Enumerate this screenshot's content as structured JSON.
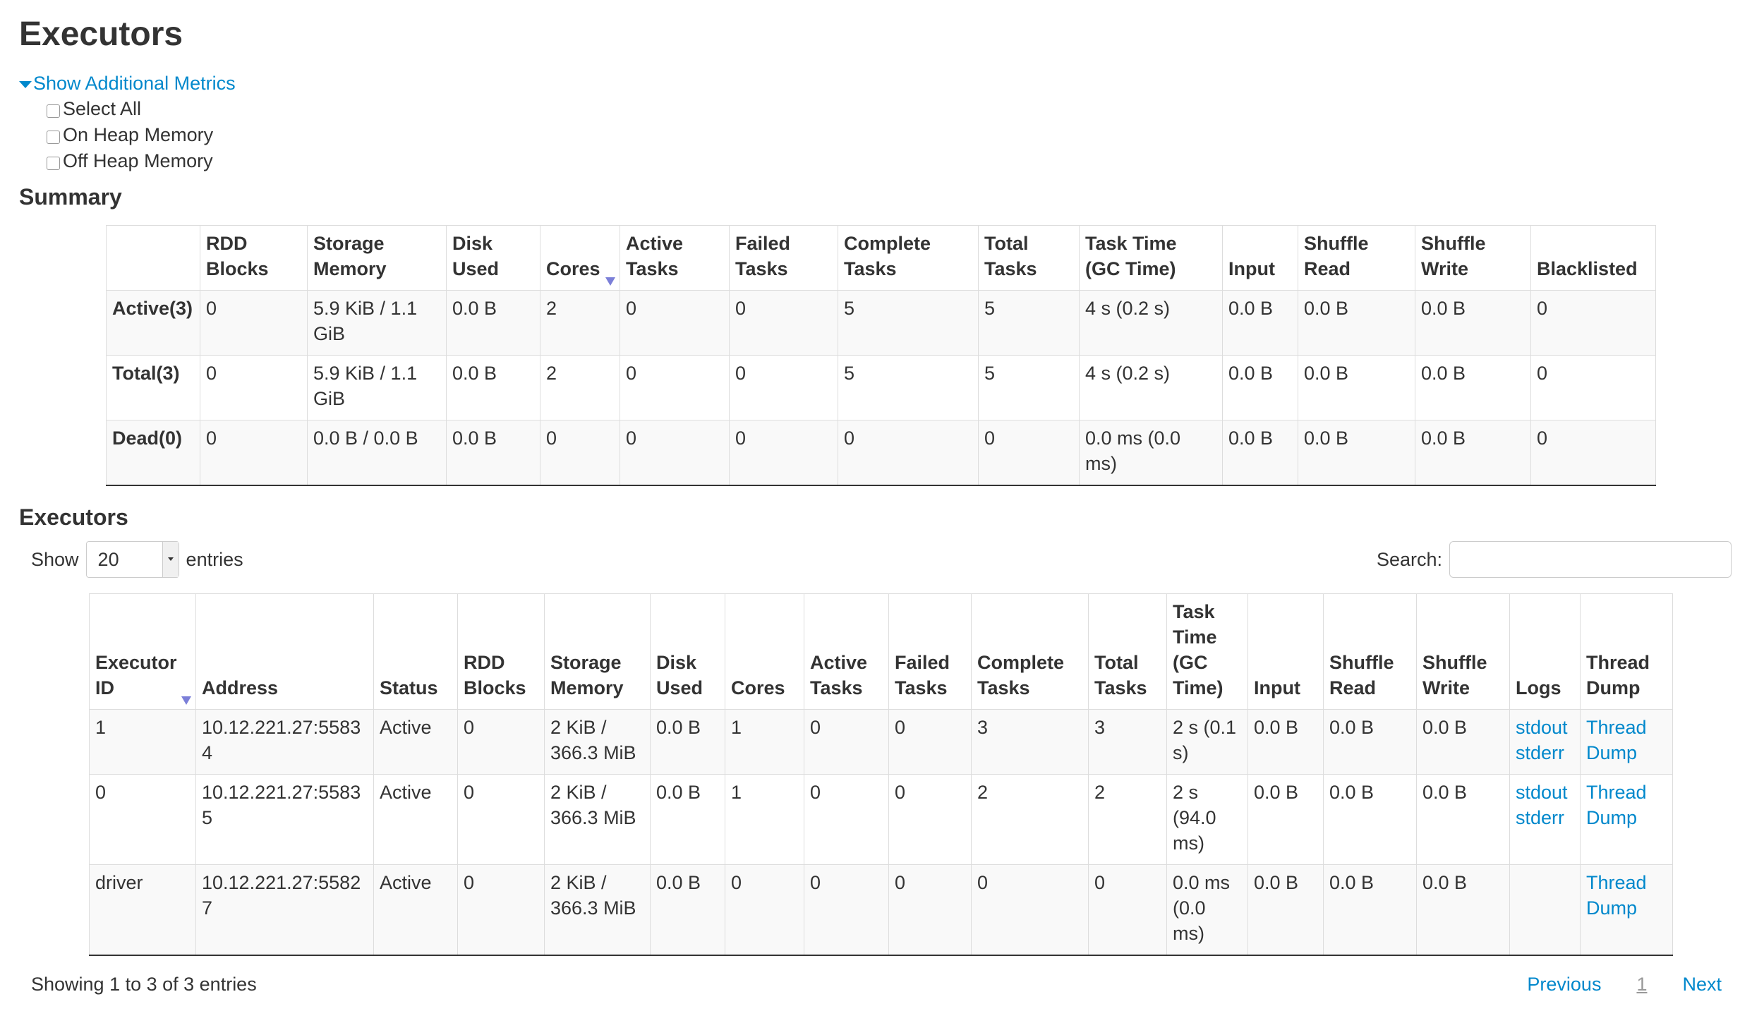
{
  "page_title": "Executors",
  "additional_metrics": {
    "toggle_label": "Show Additional Metrics",
    "options": [
      {
        "label": "Select All",
        "checked": false
      },
      {
        "label": "On Heap Memory",
        "checked": false
      },
      {
        "label": "Off Heap Memory",
        "checked": false
      }
    ]
  },
  "summary": {
    "heading": "Summary",
    "columns": [
      "",
      "RDD Blocks",
      "Storage Memory",
      "Disk Used",
      "Cores",
      "Active Tasks",
      "Failed Tasks",
      "Complete Tasks",
      "Total Tasks",
      "Task Time (GC Time)",
      "Input",
      "Shuffle Read",
      "Shuffle Write",
      "Blacklisted"
    ],
    "sorted_column": "Cores",
    "rows": [
      [
        "Active(3)",
        "0",
        "5.9 KiB / 1.1 GiB",
        "0.0 B",
        "2",
        "0",
        "0",
        "5",
        "5",
        "4 s (0.2 s)",
        "0.0 B",
        "0.0 B",
        "0.0 B",
        "0"
      ],
      [
        "Total(3)",
        "0",
        "5.9 KiB / 1.1 GiB",
        "0.0 B",
        "2",
        "0",
        "0",
        "5",
        "5",
        "4 s (0.2 s)",
        "0.0 B",
        "0.0 B",
        "0.0 B",
        "0"
      ],
      [
        "Dead(0)",
        "0",
        "0.0 B / 0.0 B",
        "0.0 B",
        "0",
        "0",
        "0",
        "0",
        "0",
        "0.0 ms (0.0 ms)",
        "0.0 B",
        "0.0 B",
        "0.0 B",
        "0"
      ]
    ]
  },
  "executors": {
    "heading": "Executors",
    "show_label": "Show",
    "entries_value": "20",
    "entries_label": "entries",
    "search_label": "Search:",
    "search_value": "",
    "columns": [
      "Executor ID",
      "Address",
      "Status",
      "RDD Blocks",
      "Storage Memory",
      "Disk Used",
      "Cores",
      "Active Tasks",
      "Failed Tasks",
      "Complete Tasks",
      "Total Tasks",
      "Task Time (GC Time)",
      "Input",
      "Shuffle Read",
      "Shuffle Write",
      "Logs",
      "Thread Dump"
    ],
    "sorted_column": "Executor ID",
    "rows": [
      {
        "cells": [
          "1",
          "10.12.221.27:55834",
          "Active",
          "0",
          "2 KiB / 366.3 MiB",
          "0.0 B",
          "1",
          "0",
          "0",
          "3",
          "3",
          "2 s (0.1 s)",
          "0.0 B",
          "0.0 B",
          "0.0 B"
        ],
        "logs": [
          "stdout",
          "stderr"
        ],
        "thread_dump": "Thread Dump"
      },
      {
        "cells": [
          "0",
          "10.12.221.27:55835",
          "Active",
          "0",
          "2 KiB / 366.3 MiB",
          "0.0 B",
          "1",
          "0",
          "0",
          "2",
          "2",
          "2 s (94.0 ms)",
          "0.0 B",
          "0.0 B",
          "0.0 B"
        ],
        "logs": [
          "stdout",
          "stderr"
        ],
        "thread_dump": "Thread Dump"
      },
      {
        "cells": [
          "driver",
          "10.12.221.27:55827",
          "Active",
          "0",
          "2 KiB / 366.3 MiB",
          "0.0 B",
          "0",
          "0",
          "0",
          "0",
          "0",
          "0.0 ms (0.0 ms)",
          "0.0 B",
          "0.0 B",
          "0.0 B"
        ],
        "logs": [],
        "thread_dump": "Thread Dump"
      }
    ],
    "info": "Showing 1 to 3 of 3 entries",
    "pagination": {
      "previous": "Previous",
      "current": "1",
      "next": "Next"
    }
  }
}
